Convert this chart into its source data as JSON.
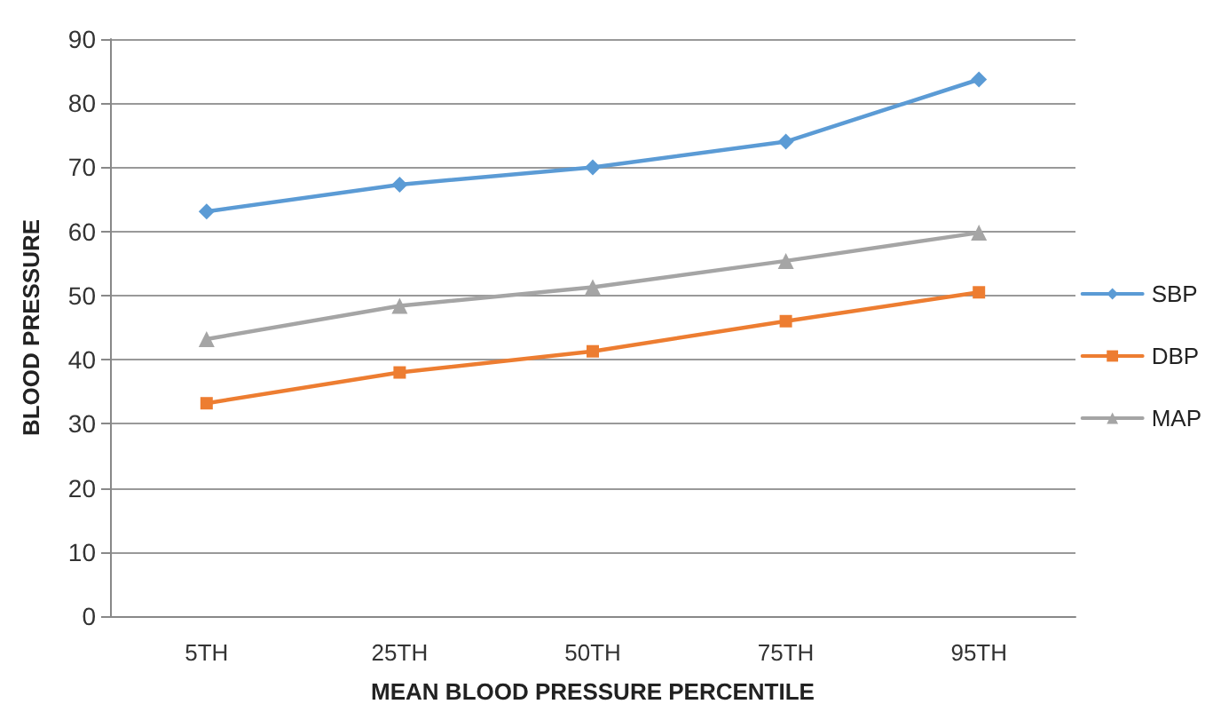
{
  "chart_data": {
    "type": "line",
    "xlabel": "MEAN BLOOD PRESSURE PERCENTILE",
    "ylabel": "BLOOD PRESSURE",
    "categories": [
      "5TH",
      "25TH",
      "50TH",
      "75TH",
      "95TH"
    ],
    "series": [
      {
        "name": "SBP",
        "color": "#5b9bd5",
        "marker": "diamond",
        "values": [
          63.1,
          67.3,
          70,
          74,
          83.7
        ]
      },
      {
        "name": "DBP",
        "color": "#ed7d31",
        "marker": "square",
        "values": [
          33.2,
          38,
          41.3,
          46,
          50.5
        ]
      },
      {
        "name": "MAP",
        "color": "#a5a5a5",
        "marker": "triangle",
        "values": [
          43.2,
          48.4,
          51.3,
          55.4,
          59.8
        ]
      }
    ],
    "ylim": [
      0,
      90
    ],
    "yticks": [
      0,
      10,
      20,
      30,
      40,
      50,
      60,
      70,
      80,
      90
    ],
    "grid": "y",
    "legend": "right",
    "line_style": "solid"
  }
}
